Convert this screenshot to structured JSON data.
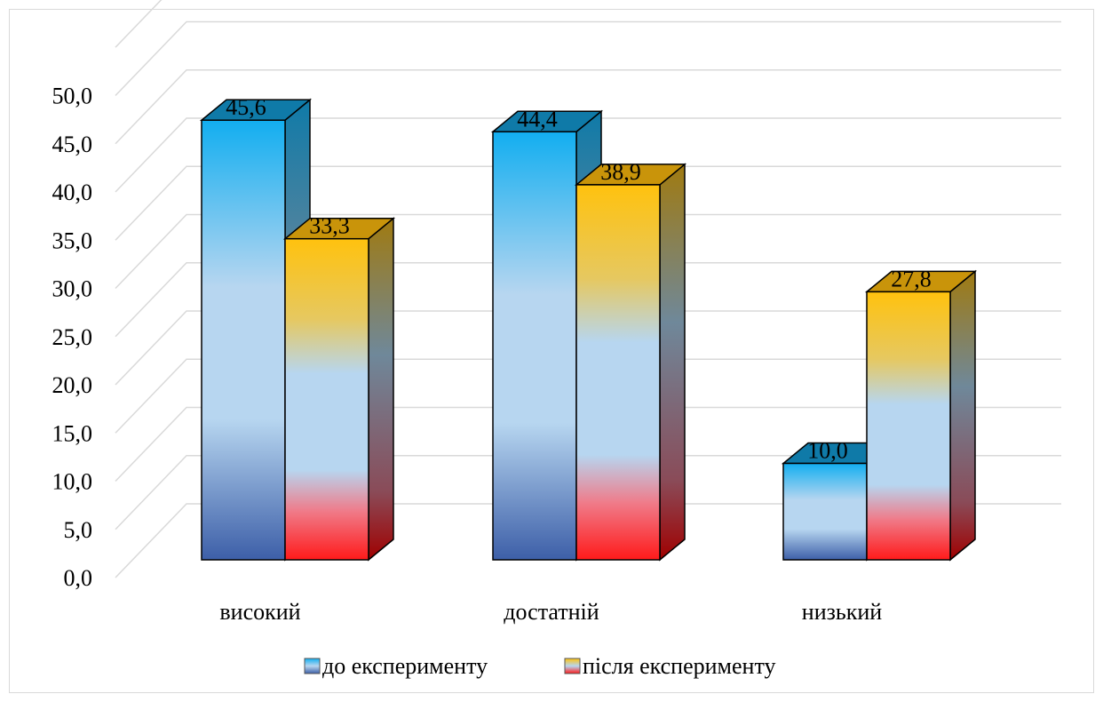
{
  "chart_data": {
    "type": "bar",
    "categories": [
      "високий",
      "достатній",
      "низький"
    ],
    "series": [
      {
        "name": "до експерименту",
        "values": [
          45.6,
          44.4,
          10.0
        ]
      },
      {
        "name": "після експерименту",
        "values": [
          33.3,
          38.9,
          27.8
        ]
      }
    ],
    "data_labels": [
      [
        "45,6",
        "44,4",
        "10,0"
      ],
      [
        "33,3",
        "38,9",
        "27,8"
      ]
    ],
    "y_ticks": [
      "0,0",
      "5,0",
      "10,0",
      "15,0",
      "20,0",
      "25,0",
      "30,0",
      "35,0",
      "40,0",
      "45,0",
      "50,0"
    ],
    "ylim": [
      0,
      55
    ],
    "grid": true,
    "style": "3d-clustered-column",
    "legend_position": "bottom",
    "colors": {
      "series1_top": "#12aef0",
      "series1_mid": "#b7d6f0",
      "series1_bottom": "#3d5fa8",
      "series2_top": "#ffc20e",
      "series2_mid": "#b7d6f0",
      "series2_bottom": "#ff1a1a",
      "grid": "#d9d9d9"
    }
  }
}
